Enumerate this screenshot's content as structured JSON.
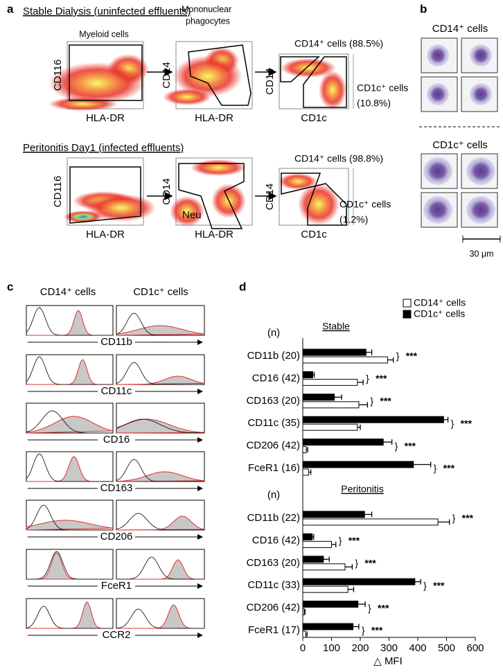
{
  "panel_labels": [
    "a",
    "b",
    "c",
    "d"
  ],
  "panel_a": {
    "rows": [
      {
        "title": "Stable Dialysis (uninfected effluents)",
        "plots": [
          {
            "xlabel": "HLA-DR",
            "ylabel": "CD116"
          },
          {
            "xlabel": "HLA-DR",
            "ylabel": "CD14"
          },
          {
            "xlabel": "CD1c",
            "ylabel": "CD14"
          }
        ],
        "cd14_gate": "CD14⁺ cells (88.5%)",
        "cd1c_gate": [
          "CD1c⁺ cells",
          "(10.8%)"
        ]
      },
      {
        "title": "Peritonitis Day1 (infected effluents)",
        "plots": [
          {
            "xlabel": "HLA-DR",
            "ylabel": "CD116"
          },
          {
            "xlabel": "HLA-DR",
            "ylabel": "CD14"
          },
          {
            "xlabel": "CD1c",
            "ylabel": "CD14"
          }
        ],
        "cd14_gate": "CD14⁺ cells (98.8%)",
        "cd1c_gate": [
          "CD1c⁺ cells",
          "(1.2%)"
        ]
      }
    ],
    "gate_titles": {
      "myeloid": "Myeloid cells",
      "mononuclear": [
        "Mononuclear",
        "phagocytes"
      ]
    },
    "neu": "Neu"
  },
  "panel_b": {
    "groups": [
      "CD14⁺ cells",
      "CD1c⁺ cells"
    ],
    "scale_bar": "30 μm"
  },
  "panel_c": {
    "columns": [
      "CD14⁺ cells",
      "CD1c⁺ cells"
    ],
    "markers": [
      "CD11b",
      "CD11c",
      "CD16",
      "CD163",
      "CD206",
      "FceR1",
      "CCR2"
    ]
  },
  "chart_data": [
    {
      "type": "bar",
      "orientation": "horizontal",
      "title": "Stable",
      "n_header": "(n)",
      "categories": [
        "CD11b (20)",
        "CD16 (42)",
        "CD163 (20)",
        "CD11c (35)",
        "CD206 (42)",
        "FceR1 (16)"
      ],
      "series": [
        {
          "name": "CD1c⁺ cells",
          "color": "#000000",
          "values": [
            220,
            35,
            110,
            490,
            280,
            385
          ],
          "errors": [
            20,
            5,
            25,
            15,
            30,
            60
          ]
        },
        {
          "name": "CD14⁺ cells",
          "color": "#ffffff",
          "values": [
            295,
            190,
            195,
            190,
            12,
            20
          ],
          "errors": [
            20,
            20,
            30,
            10,
            5,
            8
          ]
        }
      ],
      "significance": [
        "***",
        "***",
        "***",
        "***",
        "***",
        "***"
      ],
      "xlim": [
        0,
        600
      ]
    },
    {
      "type": "bar",
      "orientation": "horizontal",
      "title": "Peritonitis",
      "n_header": "(n)",
      "categories": [
        "CD11b (22)",
        "CD16 (42)",
        "CD163 (20)",
        "CD11c (33)",
        "CD206 (42)",
        "FceR1 (17)"
      ],
      "series": [
        {
          "name": "CD1c⁺ cells",
          "color": "#000000",
          "values": [
            215,
            33,
            72,
            390,
            192,
            175
          ],
          "errors": [
            25,
            5,
            20,
            20,
            25,
            20
          ]
        },
        {
          "name": "CD14⁺ cells",
          "color": "#ffffff",
          "values": [
            470,
            100,
            147,
            157,
            5,
            10
          ],
          "errors": [
            40,
            15,
            25,
            20,
            3,
            5
          ]
        }
      ],
      "significance": [
        "***",
        "***",
        "***",
        "***",
        "***",
        "***"
      ],
      "xlim": [
        0,
        600
      ],
      "xticks": [
        0,
        100,
        200,
        300,
        400,
        500,
        600
      ],
      "xlabel": "△ MFI"
    }
  ]
}
